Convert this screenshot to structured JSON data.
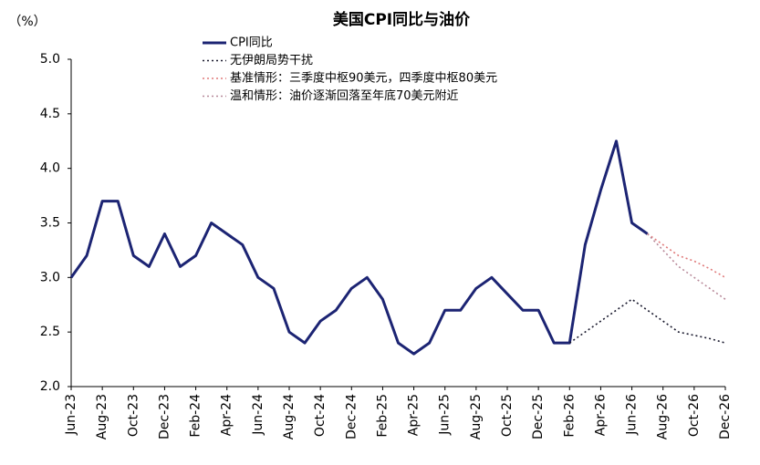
{
  "chart_data": {
    "type": "line",
    "title": "美国CPI同比与油价",
    "y_unit_label": "（%）",
    "categories": [
      "Jun-23",
      null,
      "Aug-23",
      null,
      "Oct-23",
      null,
      "Dec-23",
      null,
      "Feb-24",
      null,
      "Apr-24",
      null,
      "Jun-24",
      null,
      "Aug-24",
      null,
      "Oct-24",
      null,
      "Dec-24",
      null,
      "Feb-25",
      null,
      "Apr-25",
      null,
      "Jun-25",
      null,
      "Aug-25",
      null,
      "Oct-25",
      null,
      "Dec-25",
      null,
      "Feb-26",
      null,
      "Apr-26",
      null,
      "Jun-26",
      null,
      "Aug-26",
      null,
      "Oct-26",
      null,
      "Dec-26"
    ],
    "series": [
      {
        "name": "CPI同比",
        "color": "#1c2473",
        "style": "solid",
        "values": [
          3.0,
          3.2,
          3.7,
          3.7,
          3.2,
          3.1,
          3.4,
          3.1,
          3.2,
          3.5,
          3.4,
          3.3,
          3.0,
          2.9,
          2.5,
          2.4,
          2.6,
          2.7,
          2.9,
          3.0,
          2.8,
          2.4,
          2.3,
          2.4,
          2.7,
          2.7,
          2.9,
          3.0,
          2.85,
          2.7,
          2.7,
          2.4,
          2.4,
          3.3,
          3.8,
          4.25,
          3.5,
          3.4,
          null,
          null,
          null,
          null,
          null
        ]
      },
      {
        "name": "无伊朗局势干扰",
        "color": "#1a1a2e",
        "style": "dotted",
        "values": [
          null,
          null,
          null,
          null,
          null,
          null,
          null,
          null,
          null,
          null,
          null,
          null,
          null,
          null,
          null,
          null,
          null,
          null,
          null,
          null,
          null,
          null,
          null,
          null,
          null,
          null,
          null,
          null,
          null,
          null,
          null,
          null,
          2.4,
          2.5,
          2.6,
          2.7,
          2.8,
          2.7,
          2.6,
          2.5,
          2.47,
          2.44,
          2.4
        ]
      },
      {
        "name": "基准情形：三季度中枢90美元，四季度中枢80美元",
        "color": "#e07a7a",
        "style": "dotted",
        "values": [
          null,
          null,
          null,
          null,
          null,
          null,
          null,
          null,
          null,
          null,
          null,
          null,
          null,
          null,
          null,
          null,
          null,
          null,
          null,
          null,
          null,
          null,
          null,
          null,
          null,
          null,
          null,
          null,
          null,
          null,
          null,
          null,
          null,
          null,
          null,
          null,
          null,
          3.4,
          3.3,
          3.2,
          3.15,
          3.08,
          3.0
        ]
      },
      {
        "name": "温和情形：油价逐渐回落至年底70美元附近",
        "color": "#b88a9a",
        "style": "dotted",
        "values": [
          null,
          null,
          null,
          null,
          null,
          null,
          null,
          null,
          null,
          null,
          null,
          null,
          null,
          null,
          null,
          null,
          null,
          null,
          null,
          null,
          null,
          null,
          null,
          null,
          null,
          null,
          null,
          null,
          null,
          null,
          null,
          null,
          null,
          null,
          null,
          null,
          null,
          3.4,
          3.25,
          3.1,
          3.0,
          2.9,
          2.8
        ]
      }
    ],
    "ylim": [
      2,
      5
    ],
    "yticks": [
      {
        "value": 2,
        "label": "2.0"
      },
      {
        "value": 2.5,
        "label": "2.5"
      },
      {
        "value": 3,
        "label": "3.0"
      },
      {
        "value": 3.5,
        "label": "3.5"
      },
      {
        "value": 4,
        "label": "4.0"
      },
      {
        "value": 4.5,
        "label": "4.5"
      },
      {
        "value": 5,
        "label": "5.0"
      }
    ],
    "grid": false,
    "legend": "top-left"
  }
}
